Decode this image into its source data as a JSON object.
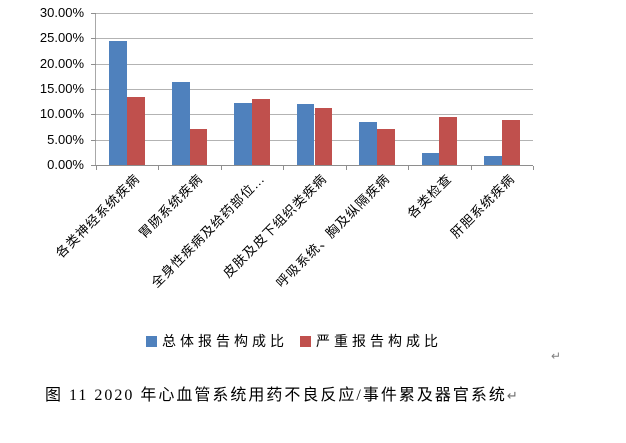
{
  "chart_data": {
    "type": "bar",
    "categories": [
      "各类神经系统疾病",
      "胃肠系统疾病",
      "全身性疾病及给药部位…",
      "皮肤及皮下组织类疾病",
      "呼吸系统、胸及纵隔疾病",
      "各类检查",
      "肝胆系统疾病"
    ],
    "series": [
      {
        "name": "总体报告构成比",
        "color": "#4F81BD",
        "values": [
          24.4,
          16.3,
          12.2,
          12.0,
          8.4,
          2.4,
          1.7
        ]
      },
      {
        "name": "严重报告构成比",
        "color": "#C0504D",
        "values": [
          13.5,
          7.1,
          13.1,
          11.3,
          7.2,
          9.4,
          8.9
        ]
      }
    ],
    "ylim": [
      0,
      30
    ],
    "ytick_step": 5,
    "ytick_labels": [
      "0.00%",
      "5.00%",
      "10.00%",
      "15.00%",
      "20.00%",
      "25.00%",
      "30.00%"
    ],
    "grid": true,
    "legend_position": "bottom",
    "x_label_rotation_deg": 45,
    "title": ""
  },
  "caption": {
    "text": "图 11  2020 年心血管系统用药不良反应/事件累及器官系统",
    "return_mark": "↵"
  },
  "marks": {
    "after_chart_return": "↵"
  },
  "colors": {
    "series_total": "#4F81BD",
    "series_serious": "#C0504D",
    "gridline": "#b3b3b3",
    "axis": "#8e8e8e"
  }
}
